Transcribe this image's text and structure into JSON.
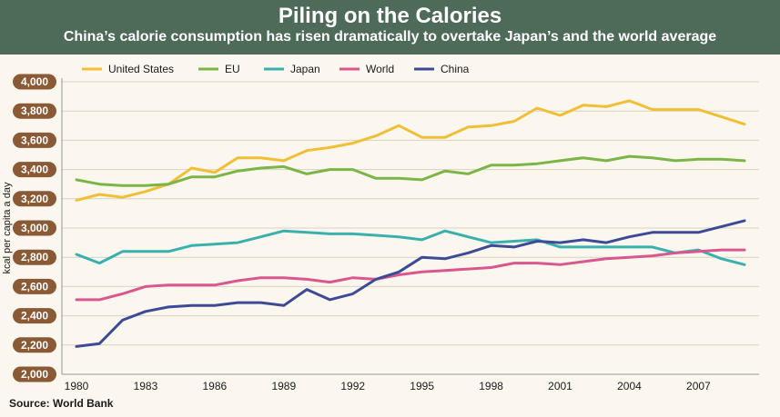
{
  "chart_data": {
    "type": "line",
    "title": "Piling on the Calories",
    "subtitle": "China’s calorie consumption has risen dramatically to overtake Japan’s and the world average",
    "xlabel": "",
    "ylabel": "kcal per capita a day",
    "source": "Source: World Bank",
    "ylim": [
      2000,
      4000
    ],
    "y_ticks": [
      2000,
      2200,
      2400,
      2600,
      2800,
      3000,
      3200,
      3400,
      3600,
      3800,
      4000
    ],
    "y_tick_labels": [
      "2,000",
      "2,200",
      "2,400",
      "2,600",
      "2,800",
      "3,000",
      "3,200",
      "3,400",
      "3,600",
      "3,800",
      "4,000"
    ],
    "x_ticks": [
      "1980",
      "1983",
      "1986",
      "1989",
      "1992",
      "1995",
      "1998",
      "2001",
      "2004",
      "2007"
    ],
    "x": [
      1980,
      1981,
      1982,
      1983,
      1984,
      1985,
      1986,
      1987,
      1988,
      1989,
      1990,
      1991,
      1992,
      1993,
      1994,
      1995,
      1996,
      1997,
      1998,
      1999,
      2000,
      2001,
      2002,
      2003,
      2004,
      2005,
      2006,
      2007,
      2008,
      2009
    ],
    "legend_position": "top",
    "grid": true,
    "series": [
      {
        "name": "United States",
        "color": "#f0bf35",
        "values": [
          3190,
          3230,
          3210,
          3250,
          3300,
          3410,
          3380,
          3480,
          3480,
          3460,
          3530,
          3550,
          3580,
          3630,
          3700,
          3620,
          3620,
          3690,
          3700,
          3730,
          3820,
          3770,
          3840,
          3830,
          3870,
          3810,
          3810,
          3810,
          3760,
          3710
        ]
      },
      {
        "name": "EU",
        "color": "#7bb548",
        "values": [
          3330,
          3300,
          3290,
          3290,
          3300,
          3350,
          3350,
          3390,
          3410,
          3420,
          3370,
          3400,
          3400,
          3340,
          3340,
          3330,
          3390,
          3370,
          3430,
          3430,
          3440,
          3460,
          3480,
          3460,
          3490,
          3480,
          3460,
          3470,
          3470,
          3460
        ]
      },
      {
        "name": "Japan",
        "color": "#3ab0ad",
        "values": [
          2820,
          2760,
          2840,
          2840,
          2840,
          2880,
          2890,
          2900,
          2940,
          2980,
          2970,
          2960,
          2960,
          2950,
          2940,
          2920,
          2980,
          2940,
          2900,
          2910,
          2920,
          2870,
          2870,
          2870,
          2870,
          2870,
          2830,
          2850,
          2790,
          2750
        ]
      },
      {
        "name": "World",
        "color": "#d9578f",
        "values": [
          2510,
          2510,
          2550,
          2600,
          2610,
          2610,
          2610,
          2640,
          2660,
          2660,
          2650,
          2630,
          2660,
          2650,
          2680,
          2700,
          2710,
          2720,
          2730,
          2760,
          2760,
          2750,
          2770,
          2790,
          2800,
          2810,
          2830,
          2840,
          2850,
          2850
        ]
      },
      {
        "name": "China",
        "color": "#3d4a96",
        "values": [
          2190,
          2210,
          2370,
          2430,
          2460,
          2470,
          2470,
          2490,
          2490,
          2470,
          2580,
          2510,
          2550,
          2650,
          2700,
          2800,
          2790,
          2830,
          2880,
          2870,
          2910,
          2900,
          2920,
          2900,
          2940,
          2970,
          2970,
          2970,
          3010,
          3050
        ]
      }
    ]
  }
}
